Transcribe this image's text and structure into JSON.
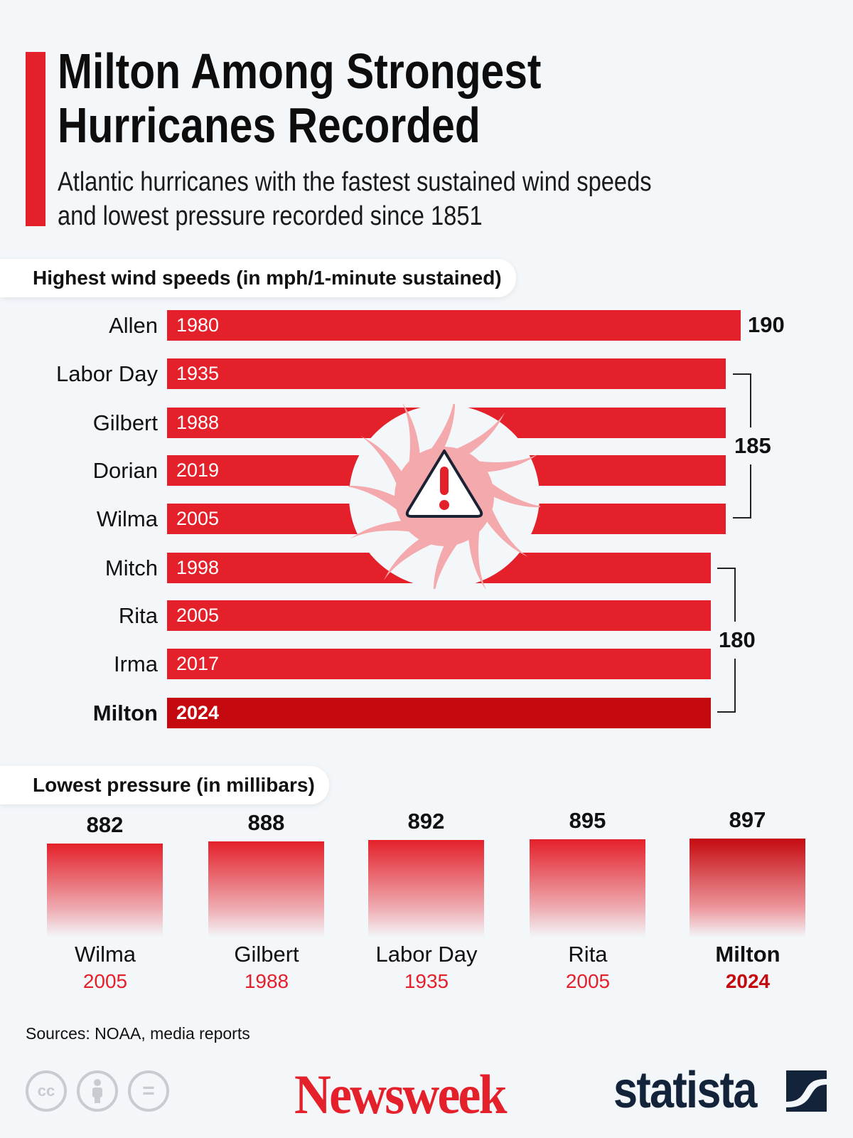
{
  "title_lines": [
    "Milton Among Strongest",
    "Hurricanes Recorded"
  ],
  "subtitle_lines": [
    "Atlantic hurricanes with the fastest sustained wind speeds",
    "and lowest pressure recorded since 1851"
  ],
  "colors": {
    "accent": "#e4202a",
    "highlight": "#c50a0f",
    "background": "#f3f7fa",
    "statista": "#13243a"
  },
  "chart_data": [
    {
      "type": "bar",
      "orientation": "horizontal",
      "title": "Highest wind speeds (in mph/1-minute sustained)",
      "categories": [
        "Allen",
        "Labor Day",
        "Gilbert",
        "Dorian",
        "Wilma",
        "Mitch",
        "Rita",
        "Irma",
        "Milton"
      ],
      "years": [
        "1980",
        "1935",
        "1988",
        "2019",
        "2005",
        "1998",
        "2005",
        "2017",
        "2024"
      ],
      "values": [
        190,
        185,
        185,
        185,
        185,
        180,
        180,
        180,
        180
      ],
      "group_labels": [
        {
          "label": "190",
          "from": 0,
          "to": 0
        },
        {
          "label": "185",
          "from": 1,
          "to": 4
        },
        {
          "label": "180",
          "from": 5,
          "to": 8
        }
      ],
      "highlight": "Milton"
    },
    {
      "type": "bar",
      "orientation": "vertical",
      "title": "Lowest pressure (in millibars)",
      "categories": [
        "Wilma",
        "Gilbert",
        "Labor Day",
        "Rita",
        "Milton"
      ],
      "years": [
        "2005",
        "1988",
        "1935",
        "2005",
        "2024"
      ],
      "values": [
        882,
        888,
        892,
        895,
        897
      ],
      "value_labels": [
        "882",
        "888",
        "892",
        "895",
        "897"
      ],
      "highlight": "Milton"
    }
  ],
  "icon": "hurricane-warning-icon",
  "source": "Sources: NOAA, media reports",
  "footer": {
    "license_icons": [
      "cc-icon",
      "attribution-icon",
      "no-derivatives-icon"
    ],
    "cc_text": "cc",
    "equals_text": "=",
    "logos": [
      "Newsweek",
      "statista"
    ]
  }
}
